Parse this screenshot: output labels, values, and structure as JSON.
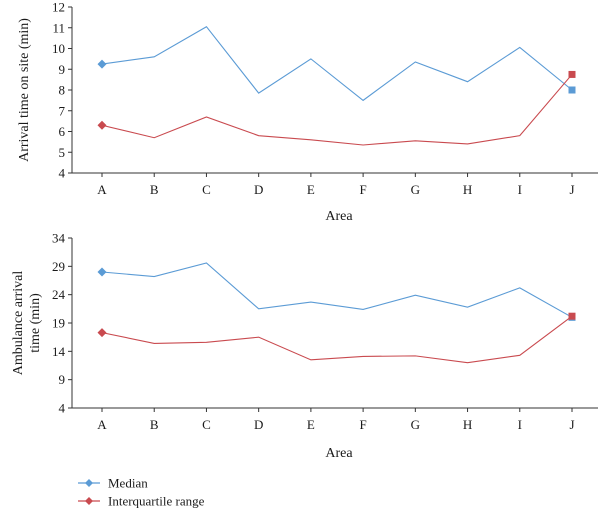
{
  "chart_data": [
    {
      "type": "line",
      "categories": [
        "A",
        "B",
        "C",
        "D",
        "E",
        "F",
        "G",
        "H",
        "I",
        "J"
      ],
      "ylabel": "Arrival time on site (min)",
      "xlabel": "Area",
      "ylim": [
        4,
        12
      ],
      "yticks": [
        4,
        5,
        6,
        7,
        8,
        9,
        10,
        11,
        12
      ],
      "series": [
        {
          "name": "Median",
          "color": "#5b9bd5",
          "values": [
            9.25,
            9.6,
            11.05,
            7.85,
            9.5,
            7.5,
            9.35,
            8.4,
            10.05,
            8.0
          ]
        },
        {
          "name": "Interquartile range",
          "color": "#c94a4f",
          "values": [
            6.3,
            5.7,
            6.7,
            5.8,
            5.6,
            5.35,
            5.55,
            5.4,
            5.8,
            8.75
          ]
        }
      ]
    },
    {
      "type": "line",
      "categories": [
        "A",
        "B",
        "C",
        "D",
        "E",
        "F",
        "G",
        "H",
        "I",
        "J"
      ],
      "ylabel": "Ambulance arrival time (min)",
      "xlabel": "Area",
      "ylim": [
        4,
        34
      ],
      "yticks": [
        4,
        9,
        14,
        19,
        24,
        29,
        34
      ],
      "series": [
        {
          "name": "Median",
          "color": "#5b9bd5",
          "values": [
            28.0,
            27.2,
            29.6,
            21.5,
            22.7,
            21.4,
            23.9,
            21.8,
            25.2,
            20.0
          ]
        },
        {
          "name": "Interquartile range",
          "color": "#c94a4f",
          "values": [
            17.3,
            15.4,
            15.6,
            16.5,
            12.5,
            13.1,
            13.2,
            12.0,
            13.3,
            20.2
          ]
        }
      ]
    }
  ],
  "legend": [
    {
      "label": "Median",
      "color": "#5b9bd5"
    },
    {
      "label": "Interquartile range",
      "color": "#c94a4f"
    }
  ]
}
